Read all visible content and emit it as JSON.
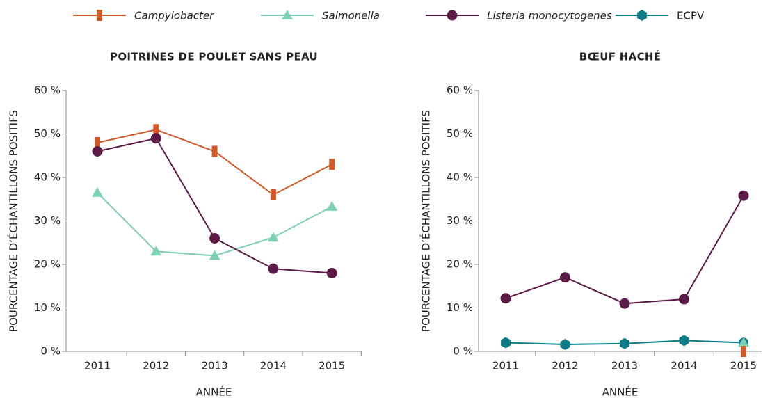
{
  "legend": [
    {
      "name": "Campylobacter",
      "color": "#d0592a",
      "marker": "bar",
      "style": "italic"
    },
    {
      "name": "Salmonella",
      "color": "#7dcfb6",
      "marker": "triangle",
      "style": "italic"
    },
    {
      "name": "Listeria monocytogenes",
      "color": "#5c1a47",
      "marker": "circle",
      "style": "italic"
    },
    {
      "name": "ECPV",
      "color": "#0e7c86",
      "marker": "hexagon",
      "style": "normal"
    }
  ],
  "chart_data": [
    {
      "type": "line",
      "title": "POITRINES DE POULET SANS PEAU",
      "x_label": "ANNÉE",
      "y_label": "POURCENTAGE D’ÉCHANTILLONS POSITIFS",
      "categories": [
        "2011",
        "2012",
        "2013",
        "2014",
        "2015"
      ],
      "ylim": [
        0,
        60
      ],
      "yticks": [
        {
          "value": 0,
          "label": "0 %"
        },
        {
          "value": 10,
          "label": "10 %"
        },
        {
          "value": 20,
          "label": "20 %"
        },
        {
          "value": 30,
          "label": "30 %"
        },
        {
          "value": 40,
          "label": "40 %"
        },
        {
          "value": 50,
          "label": "50 %"
        },
        {
          "value": 60,
          "label": "60 %"
        }
      ],
      "series": [
        {
          "name": "Campylobacter",
          "values": [
            48,
            51,
            46,
            36,
            43
          ]
        },
        {
          "name": "Salmonella",
          "values": [
            36.5,
            23,
            22,
            26.2,
            33.3
          ]
        },
        {
          "name": "Listeria monocytogenes",
          "values": [
            46,
            49,
            26,
            19,
            18
          ]
        }
      ]
    },
    {
      "type": "line",
      "title": "BŒUF HACHÉ",
      "x_label": "ANNÉE",
      "y_label": "POURCENTAGE D’ÉCHANTILLONS POSITIFS",
      "categories": [
        "2011",
        "2012",
        "2013",
        "2014",
        "2015"
      ],
      "ylim": [
        0,
        60
      ],
      "yticks": [
        {
          "value": 0,
          "label": "0 %"
        },
        {
          "value": 10,
          "label": "10 %"
        },
        {
          "value": 20,
          "label": "20 %"
        },
        {
          "value": 30,
          "label": "30 %"
        },
        {
          "value": 40,
          "label": "40 %"
        },
        {
          "value": 50,
          "label": "50 %"
        },
        {
          "value": 60,
          "label": "60 %"
        }
      ],
      "series": [
        {
          "name": "Listeria monocytogenes",
          "values": [
            12.2,
            17,
            11,
            12,
            35.8
          ]
        },
        {
          "name": "ECPV",
          "values": [
            2,
            1.6,
            1.8,
            2.5,
            2
          ]
        },
        {
          "name": "Salmonella",
          "values": [
            null,
            null,
            null,
            null,
            2
          ]
        },
        {
          "name": "Campylobacter",
          "values": [
            null,
            null,
            null,
            null,
            0
          ]
        }
      ]
    }
  ]
}
